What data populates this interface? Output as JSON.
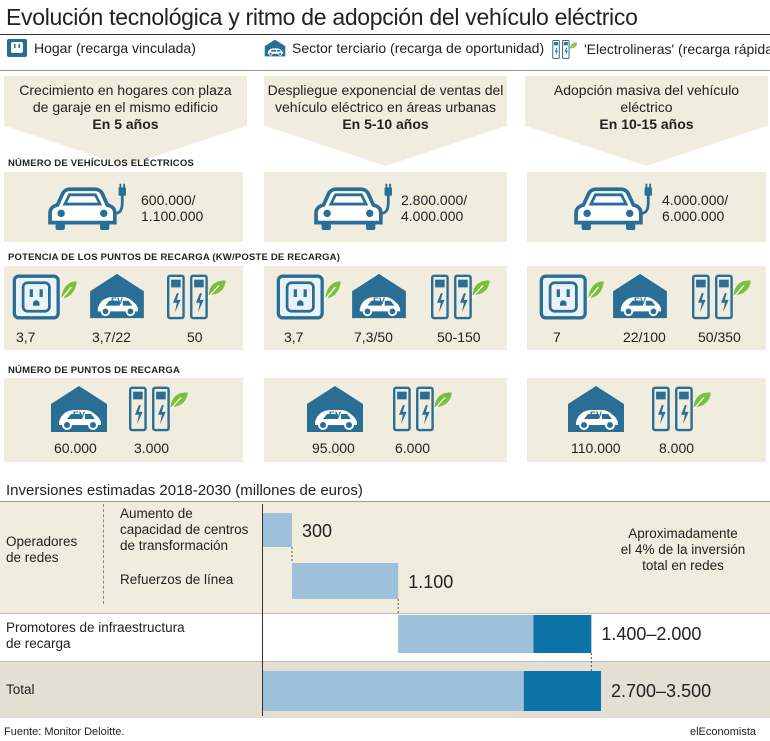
{
  "title": "Evolución tecnológica y ritmo de adopción del vehículo eléctrico",
  "columns": [
    {
      "header": "Hogar (recarga vinculada)",
      "desc1": "Crecimiento en hogares con plaza",
      "desc2": "de garaje en el mismo edificio",
      "time": "En 5 años",
      "vehicles": "600.000/\n1.100.000",
      "power": [
        "3,7",
        "3,7/22",
        "50"
      ],
      "points": [
        "60.000",
        "3.000"
      ]
    },
    {
      "header": "Sector terciario (recarga de oportunidad)",
      "desc1": "Despliegue exponencial de ventas del",
      "desc2": "vehículo eléctrico en áreas urbanas",
      "time": "En 5-10 años",
      "vehicles": "2.800.000/\n4.000.000",
      "power": [
        "3,7",
        "7,3/50",
        "50-150"
      ],
      "points": [
        "95.000",
        "6.000"
      ]
    },
    {
      "header": "'Electrolineras' (recarga rápida)",
      "desc1": "Adopción masiva del vehículo",
      "desc2": "eléctrico",
      "time": "En 10-15 años",
      "vehicles": "4.000.000/\n6.000.000",
      "power": [
        "7",
        "22/100",
        "50/350"
      ],
      "points": [
        "110.000",
        "8.000"
      ]
    }
  ],
  "sections": {
    "vehicles": "NÚMERO DE VEHÍCULOS ELÉCTRICOS",
    "power": "POTENCIA DE LOS PUNTOS DE RECARGA (KW/POSTE DE RECARGA)",
    "points": "NÚMERO DE PUNTOS DE RECARGA"
  },
  "ev_badge": "EV",
  "investment": {
    "title": "Inversiones estimadas 2018-2030 (millones de euros)",
    "group_operators": "Operadores\nde redes",
    "row1_label": "Aumento de\ncapacidad de centros\nde transformación",
    "row2_label": "Refuerzos de línea",
    "row3_label": "Promotores de infraestructura\nde recarga",
    "row4_label": "Total",
    "note": "Aproximadamente\nel 4% de la inversión\ntotal en redes",
    "value_labels": [
      "300",
      "1.100",
      "1.400–2.000",
      "2.700–3.500"
    ]
  },
  "chart_data": {
    "type": "bar",
    "title": "Inversiones estimadas 2018-2030 (millones de euros)",
    "categories": [
      "Aumento de capacidad de centros de transformación",
      "Refuerzos de línea",
      "Promotores de infraestructura de recarga",
      "Total"
    ],
    "series": [
      {
        "values": [
          300,
          1100,
          1400,
          2700
        ]
      },
      {
        "values": [
          0,
          0,
          600,
          800
        ]
      }
    ],
    "offsets": [
      0,
      300,
      1400,
      0
    ],
    "xlim": [
      0,
      3500
    ],
    "colors": {
      "light": "#9ec0da",
      "dark": "#0d74a8"
    }
  },
  "footer": {
    "source": "Fuente: Monitor Deloitte.",
    "brand": "elEconomista"
  },
  "colors": {
    "beige": "#f0ecde",
    "blue": "#2a6e96",
    "lightblue": "#9ec0da",
    "darkblue": "#0d74a8",
    "green": "#7bbf3e",
    "gray": "#e3dfd3"
  }
}
